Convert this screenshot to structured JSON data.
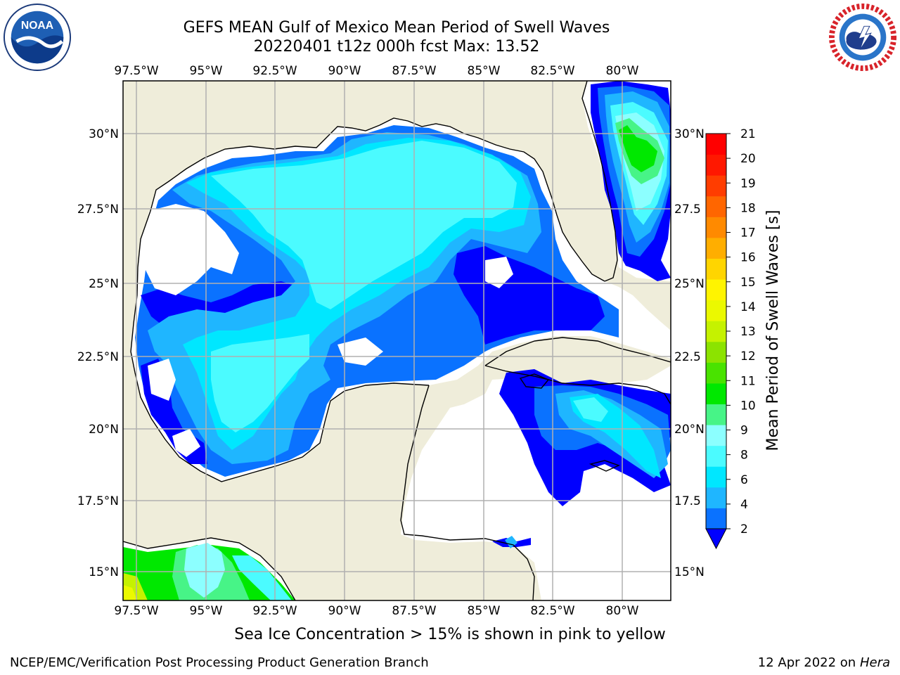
{
  "title": "GEFS MEAN Gulf of Mexico Mean Period of Swell Waves",
  "subtitle": "20220401 t12z 000h fcst   Max: 13.52",
  "logos": {
    "left": "NOAA",
    "right": "NATIONAL WEATHER SERVICE"
  },
  "colorbar": {
    "label": "Mean Period of Swell Waves [s]",
    "ticks": [
      "2",
      "4",
      "6",
      "8",
      "9",
      "10",
      "11",
      "12",
      "13",
      "14",
      "15",
      "16",
      "17",
      "18",
      "19",
      "20",
      "21"
    ],
    "levels": [
      2,
      3,
      4,
      5,
      6,
      7,
      8,
      9,
      10,
      11,
      12,
      13,
      14,
      15,
      16,
      17,
      18,
      19,
      20,
      21
    ],
    "colors": [
      "#0a72ff",
      "#1fb6ff",
      "#00e7ff",
      "#4bfbff",
      "#8cffff",
      "#47f487",
      "#00e800",
      "#49e300",
      "#8ce300",
      "#c5f200",
      "#ebf900",
      "#fff400",
      "#ffd500",
      "#ffae00",
      "#ff8a00",
      "#ff6600",
      "#ff3d00",
      "#ff1800",
      "#ff0000"
    ],
    "under_color": "#0000ff"
  },
  "axes": {
    "lon_labels": [
      "97.5°W",
      "95°W",
      "92.5°W",
      "90°W",
      "87.5°W",
      "85°W",
      "82.5°W",
      "80°W"
    ],
    "lat_labels_left": [
      "30°N",
      "27.5°N",
      "25°N",
      "22.5°N",
      "20°N",
      "17.5°N",
      "15°N"
    ],
    "lat_labels_right": [
      "30°N",
      "27.5",
      "25°N",
      "22.5",
      "20°N",
      "17.5",
      "15°N"
    ]
  },
  "chart_data": {
    "type": "heatmap",
    "title": "GEFS MEAN Gulf of Mexico Mean Period of Swell Waves",
    "subtitle": "20220401 t12z 000h fcst   Max: 13.52",
    "lon_range": [
      -98,
      -78.4
    ],
    "lat_range": [
      14,
      32
    ],
    "max_value": 13.52,
    "units": "s",
    "zones": [
      {
        "region": "central Gulf of Mexico",
        "value_range": [
          5,
          7
        ]
      },
      {
        "region": "western / southern Gulf margins",
        "value_range": [
          2,
          5
        ]
      },
      {
        "region": "Atlantic east of Florida",
        "value_range": [
          6,
          10
        ]
      },
      {
        "region": "eastern Pacific (bottom-left)",
        "value_range": [
          9,
          13.52
        ]
      },
      {
        "region": "northwest Caribbean",
        "value_range": [
          2,
          8
        ]
      }
    ]
  },
  "footer": {
    "note": "Sea Ice Concentration > 15% is shown in pink to yellow",
    "credit": "NCEP/EMC/Verification Post Processing Product Generation Branch",
    "date": "12 Apr 2022 on",
    "host": "Hera"
  }
}
